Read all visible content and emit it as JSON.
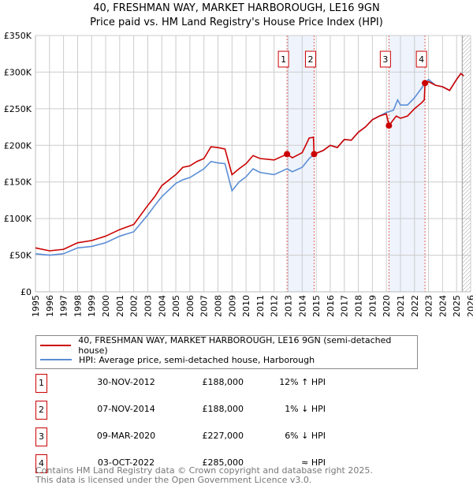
{
  "chart_data": {
    "type": "line",
    "title": "40, FRESHMAN WAY, MARKET HARBOROUGH, LE16 9GN",
    "subtitle": "Price paid vs. HM Land Registry's House Price Index (HPI)",
    "xlim": [
      1995,
      2026
    ],
    "ylim": [
      0,
      350000
    ],
    "x_ticks": [
      "1995",
      "1996",
      "1997",
      "1998",
      "1999",
      "2000",
      "2001",
      "2002",
      "2003",
      "2004",
      "2005",
      "2006",
      "2007",
      "2008",
      "2009",
      "2010",
      "2011",
      "2012",
      "2013",
      "2014",
      "2015",
      "2016",
      "2017",
      "2018",
      "2019",
      "2020",
      "2021",
      "2022",
      "2023",
      "2024",
      "2025",
      "2026"
    ],
    "y_ticks": [
      {
        "v": 0,
        "l": "£0"
      },
      {
        "v": 50000,
        "l": "£50K"
      },
      {
        "v": 100000,
        "l": "£100K"
      },
      {
        "v": 150000,
        "l": "£150K"
      },
      {
        "v": 200000,
        "l": "£200K"
      },
      {
        "v": 250000,
        "l": "£250K"
      },
      {
        "v": 300000,
        "l": "£300K"
      },
      {
        "v": 350000,
        "l": "£350K"
      }
    ],
    "grid": true,
    "series": [
      {
        "name": "40, FRESHMAN WAY, MARKET HARBOROUGH, LE16 9GN (semi-detached house)",
        "color": "#cc0000",
        "x": [
          1995,
          1996,
          1997,
          1998,
          1999,
          2000,
          2001,
          2002,
          2003,
          2003.5,
          2004,
          2005,
          2005.5,
          2006,
          2006.5,
          2007,
          2007.5,
          2008,
          2008.5,
          2009,
          2009.5,
          2010,
          2010.5,
          2011,
          2012,
          2012.92,
          2013.3,
          2014,
          2014.5,
          2014.8,
          2014.85,
          2015.5,
          2016,
          2016.5,
          2017,
          2017.5,
          2018,
          2018.5,
          2019,
          2019.5,
          2020,
          2020.18,
          2020.7,
          2021,
          2021.5,
          2022,
          2022.5,
          2022.7,
          2022.75,
          2023,
          2023.5,
          2024,
          2024.5,
          2025,
          2025.3,
          2025.5
        ],
        "y": [
          60,
          56,
          58,
          67,
          70,
          76,
          85,
          92,
          118,
          130,
          145,
          160,
          170,
          172,
          178,
          182,
          198,
          197,
          195,
          160,
          168,
          175,
          186,
          182,
          180,
          188,
          183,
          190,
          210,
          211,
          188,
          193,
          200,
          197,
          208,
          207,
          218,
          225,
          235,
          240,
          243,
          227,
          240,
          237,
          240,
          250,
          258,
          262,
          285,
          287,
          282,
          280,
          275,
          290,
          298,
          295
        ]
      },
      {
        "name": "HPI: Average price, semi-detached house, Harborough",
        "color": "#5b8ed6",
        "x": [
          1995,
          1996,
          1997,
          1998,
          1999,
          2000,
          2001,
          2002,
          2003,
          2003.5,
          2004,
          2005,
          2005.5,
          2006,
          2006.5,
          2007,
          2007.5,
          2008,
          2008.5,
          2009,
          2009.5,
          2010,
          2010.5,
          2011,
          2012,
          2012.92,
          2013.3,
          2014,
          2014.5,
          2014.85,
          2015.5,
          2016,
          2016.5,
          2017,
          2017.5,
          2018,
          2018.5,
          2019,
          2019.5,
          2020,
          2020.5,
          2020.8,
          2021,
          2021.5,
          2022,
          2022.5,
          2022.75,
          2023,
          2023.5,
          2024,
          2024.5,
          2025,
          2025.3,
          2025.5
        ],
        "y": [
          52,
          50,
          52,
          60,
          62,
          67,
          76,
          82,
          105,
          118,
          130,
          148,
          153,
          156,
          162,
          168,
          178,
          176,
          175,
          138,
          150,
          157,
          168,
          163,
          160,
          168,
          164,
          170,
          182,
          188,
          193,
          200,
          197,
          208,
          207,
          218,
          225,
          235,
          240,
          245,
          248,
          262,
          255,
          255,
          265,
          278,
          285,
          290,
          282,
          280,
          275,
          290,
          298,
          295
        ]
      }
    ],
    "sales": [
      {
        "n": "1",
        "x": 2012.92,
        "y": 188
      },
      {
        "n": "2",
        "x": 2014.85,
        "y": 188
      },
      {
        "n": "3",
        "x": 2020.18,
        "y": 227
      },
      {
        "n": "4",
        "x": 2022.75,
        "y": 285
      }
    ],
    "shaded": [
      [
        2012.92,
        2014.85
      ],
      [
        2020.18,
        2022.75
      ]
    ],
    "forecast_from": 2025.4
  },
  "legend": {
    "red": "40, FRESHMAN WAY, MARKET HARBOROUGH, LE16 9GN (semi-detached house)",
    "blue": "HPI: Average price, semi-detached house, Harborough"
  },
  "table": [
    {
      "n": "1",
      "date": "30-NOV-2012",
      "price": "£188,000",
      "hpi": "12% ↑ HPI"
    },
    {
      "n": "2",
      "date": "07-NOV-2014",
      "price": "£188,000",
      "hpi": "1% ↓ HPI"
    },
    {
      "n": "3",
      "date": "09-MAR-2020",
      "price": "£227,000",
      "hpi": "6% ↓ HPI"
    },
    {
      "n": "4",
      "date": "03-OCT-2022",
      "price": "£285,000",
      "hpi": "≈ HPI"
    }
  ],
  "footer": [
    "Contains HM Land Registry data © Crown copyright and database right 2025.",
    "This data is licensed under the Open Government Licence v3.0."
  ]
}
